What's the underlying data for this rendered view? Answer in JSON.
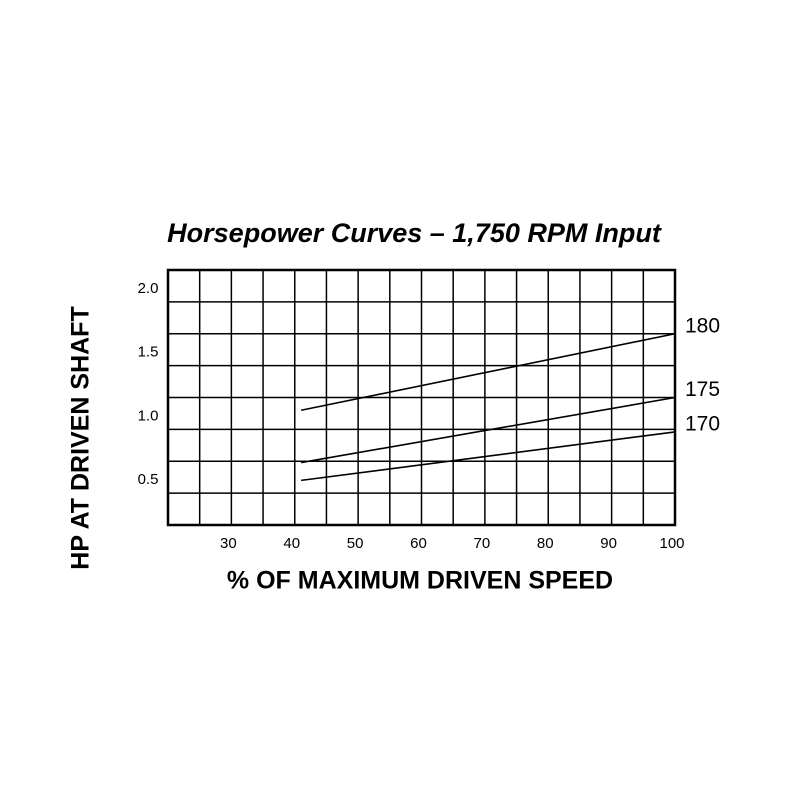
{
  "chart_data": {
    "type": "line",
    "title": "Horsepower Curves – 1,750 RPM Input",
    "xlabel": "% OF MAXIMUM DRIVEN SPEED",
    "ylabel": "HP AT DRIVEN SHAFT",
    "xlim": [
      20,
      100
    ],
    "ylim": [
      0.25,
      2.25
    ],
    "xticks": [
      30,
      40,
      50,
      60,
      70,
      80,
      90,
      100
    ],
    "yticks": [
      {
        "value": 0.5,
        "label": "0.5"
      },
      {
        "value": 1,
        "label": "1.0"
      },
      {
        "value": 1.5,
        "label": "1.5"
      },
      {
        "value": 2,
        "label": "2.0"
      }
    ],
    "xgrid": [
      20,
      25,
      30,
      35,
      40,
      45,
      50,
      55,
      60,
      65,
      70,
      75,
      80,
      85,
      90,
      95,
      100
    ],
    "ygrid": [
      0.25,
      0.5,
      0.75,
      1,
      1.25,
      1.5,
      1.75,
      2,
      2.25
    ],
    "series": [
      {
        "name": "180",
        "color": "#000000",
        "x": [
          41,
          100
        ],
        "values": [
          1.15,
          1.75
        ]
      },
      {
        "name": "175",
        "color": "#000000",
        "x": [
          41,
          100
        ],
        "values": [
          0.74,
          1.25
        ]
      },
      {
        "name": "170",
        "color": "#000000",
        "x": [
          41,
          100
        ],
        "values": [
          0.6,
          0.98
        ]
      }
    ]
  }
}
